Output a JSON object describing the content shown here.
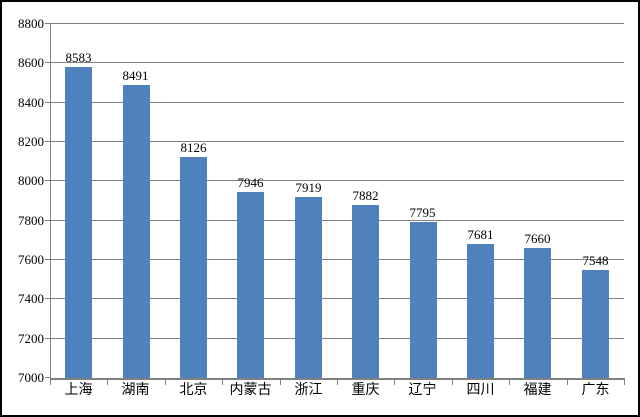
{
  "chart_data": {
    "type": "bar",
    "title": "",
    "categories": [
      "上海",
      "湖南",
      "北京",
      "内蒙古",
      "浙江",
      "重庆",
      "辽宁",
      "四川",
      "福建",
      "广东"
    ],
    "values": [
      8583,
      8491,
      8126,
      7946,
      7919,
      7882,
      7795,
      7681,
      7660,
      7548
    ],
    "data_labels": [
      "8583",
      "8491",
      "8126",
      "7946",
      "7919",
      "7882",
      "7795",
      "7681",
      "7660",
      "7548"
    ],
    "xlabel": "",
    "ylabel": "",
    "ylim": [
      7000,
      8800
    ],
    "ytick_step": 200,
    "ytick_labels": [
      "7000",
      "7200",
      "7400",
      "7600",
      "7800",
      "8000",
      "8200",
      "8400",
      "8600",
      "8800"
    ],
    "grid": true,
    "legend_position": "none",
    "colors": {
      "bar": "#4F81BD",
      "gridline": "#808080",
      "axis": "#808080",
      "text": "#000000",
      "background": "#FFFFFF",
      "frame_border": "#000000"
    }
  }
}
